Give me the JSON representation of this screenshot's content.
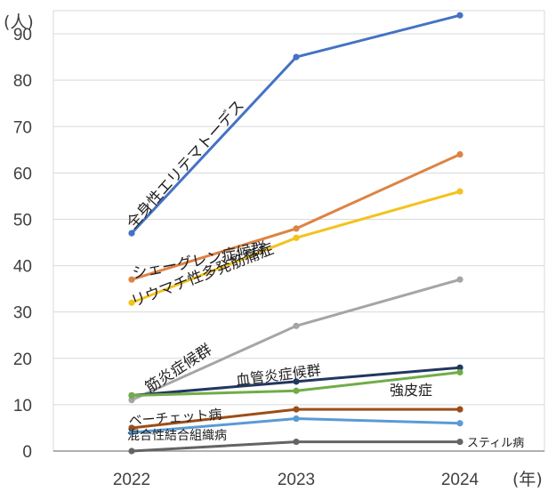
{
  "chart_data": {
    "type": "line",
    "title": "",
    "y_unit_label": "(人)",
    "x_unit_label": "(年)",
    "x": [
      "2022",
      "2023",
      "2024"
    ],
    "ylim": [
      0,
      95
    ],
    "yticks": [
      0,
      10,
      20,
      30,
      40,
      50,
      60,
      70,
      80,
      90
    ],
    "grid": "horizontal",
    "legend": "none (series labeled inline)",
    "series": [
      {
        "name": "全身性エリテマトーデス",
        "color": "#4472c4",
        "values": [
          47,
          85,
          94
        ]
      },
      {
        "name": "シェーグレン症候群",
        "color": "#dd8344",
        "values": [
          37,
          48,
          64
        ]
      },
      {
        "name": "リウマチ性多発筋痛症",
        "color": "#f4c21d",
        "values": [
          32,
          46,
          56
        ]
      },
      {
        "name": "筋炎症候群",
        "color": "#a5a5a5",
        "values": [
          11,
          27,
          37
        ]
      },
      {
        "name": "血管炎症候群",
        "color": "#22375f",
        "values": [
          12,
          15,
          18
        ]
      },
      {
        "name": "強皮症",
        "color": "#70ad47",
        "values": [
          12,
          13,
          17
        ]
      },
      {
        "name": "ベーチェット病",
        "color": "#9c4e17",
        "values": [
          5,
          9,
          9
        ]
      },
      {
        "name": "混合性結合組織病",
        "color": "#5a9bd5",
        "values": [
          4,
          7,
          6
        ]
      },
      {
        "name": "スティル病",
        "color": "#646464",
        "values": [
          0,
          2,
          2
        ]
      }
    ]
  }
}
